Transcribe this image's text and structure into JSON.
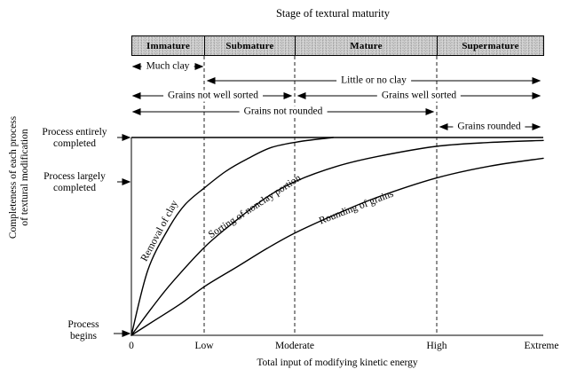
{
  "chart_data": {
    "type": "line",
    "title": "Stage of textural maturity",
    "xlabel": "Total input of modifying kinetic energy",
    "ylabel": "Completeness of each process of textural modification",
    "ylabel_lines": [
      "Completeness of each process",
      "of textural modification"
    ],
    "x_ticks": [
      "0",
      "Low",
      "Moderate",
      "High",
      "Extreme"
    ],
    "x_tick_positions": [
      0,
      0.177,
      0.397,
      0.741,
      1.0
    ],
    "ylim": [
      0,
      1
    ],
    "grid": "dashed vertical lines at stage boundaries",
    "legend_position": "labels along curves",
    "ink_color": "#000000",
    "stage_band_fill": "#d4d4d4",
    "stages": [
      {
        "label": "Immature",
        "x_range": [
          0,
          0.177
        ]
      },
      {
        "label": "Submature",
        "x_range": [
          0.177,
          0.397
        ]
      },
      {
        "label": "Mature",
        "x_range": [
          0.397,
          0.741
        ]
      },
      {
        "label": "Supermature",
        "x_range": [
          0.741,
          1.0
        ]
      }
    ],
    "annotations": [
      {
        "label": "Much clay",
        "x_range": [
          0,
          0.177
        ]
      },
      {
        "label": "Little or no clay",
        "x_range": [
          0.177,
          1.0
        ]
      },
      {
        "label": "Grains not well sorted",
        "x_range": [
          0,
          0.397
        ]
      },
      {
        "label": "Grains well sorted",
        "x_range": [
          0.397,
          1.0
        ]
      },
      {
        "label": "Grains not rounded",
        "x_range": [
          0,
          0.741
        ]
      },
      {
        "label": "Grains rounded",
        "x_range": [
          0.741,
          1.0
        ]
      }
    ],
    "reference_levels": [
      {
        "lines": [
          "Process entirely",
          "completed"
        ],
        "value": 1.0
      },
      {
        "lines": [
          "Process largely",
          "completed"
        ],
        "value": 0.78
      },
      {
        "lines": [
          "Process",
          "begins"
        ],
        "value": 0.0
      }
    ],
    "series": [
      {
        "name": "Removal of clay",
        "x": [
          0,
          0.04,
          0.09,
          0.13,
          0.18,
          0.23,
          0.28,
          0.34,
          0.41,
          0.49
        ],
        "y": [
          0,
          0.33,
          0.54,
          0.66,
          0.75,
          0.83,
          0.89,
          0.95,
          0.98,
          1.0
        ]
      },
      {
        "name": "Sorting of nonclay portion",
        "x": [
          0,
          0.05,
          0.1,
          0.18,
          0.26,
          0.33,
          0.4,
          0.5,
          0.6,
          0.74,
          0.87,
          1.0
        ],
        "y": [
          0,
          0.14,
          0.27,
          0.45,
          0.59,
          0.7,
          0.78,
          0.855,
          0.905,
          0.955,
          0.975,
          0.985
        ]
      },
      {
        "name": "Rounding of grains",
        "x": [
          0,
          0.06,
          0.12,
          0.18,
          0.26,
          0.33,
          0.4,
          0.5,
          0.6,
          0.74,
          0.87,
          1.0
        ],
        "y": [
          0,
          0.08,
          0.16,
          0.25,
          0.35,
          0.44,
          0.52,
          0.615,
          0.7,
          0.795,
          0.855,
          0.895
        ]
      }
    ]
  }
}
